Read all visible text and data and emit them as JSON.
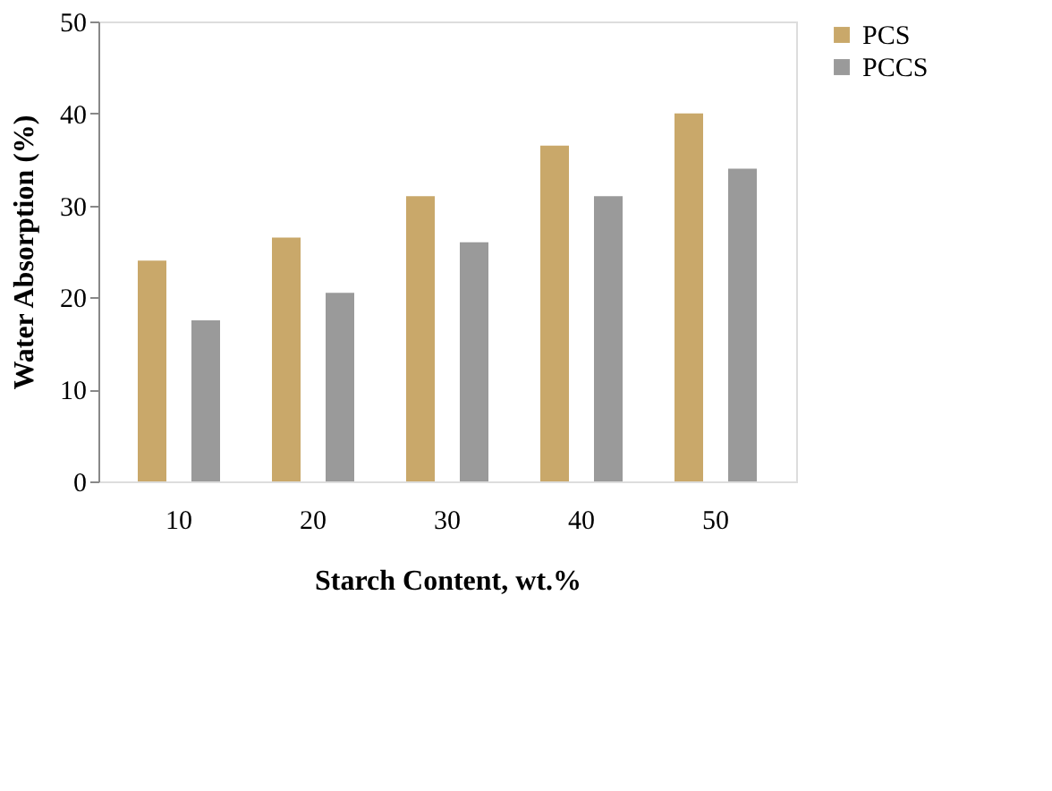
{
  "chart_data": {
    "type": "bar",
    "xlabel": "Starch Content, wt.%",
    "ylabel": "Water Absorption (%)",
    "categories": [
      "10",
      "20",
      "30",
      "40",
      "50"
    ],
    "series": [
      {
        "name": "PCS",
        "color": "#c9a86a",
        "values": [
          24,
          26.5,
          31,
          36.5,
          40
        ]
      },
      {
        "name": "PCCS",
        "color": "#9a9a9a",
        "values": [
          17.5,
          20.5,
          26,
          31,
          34
        ]
      }
    ],
    "ylim": [
      0,
      50
    ],
    "yticks": [
      0,
      10,
      20,
      30,
      40,
      50
    ],
    "grid": false,
    "legend": "right"
  }
}
